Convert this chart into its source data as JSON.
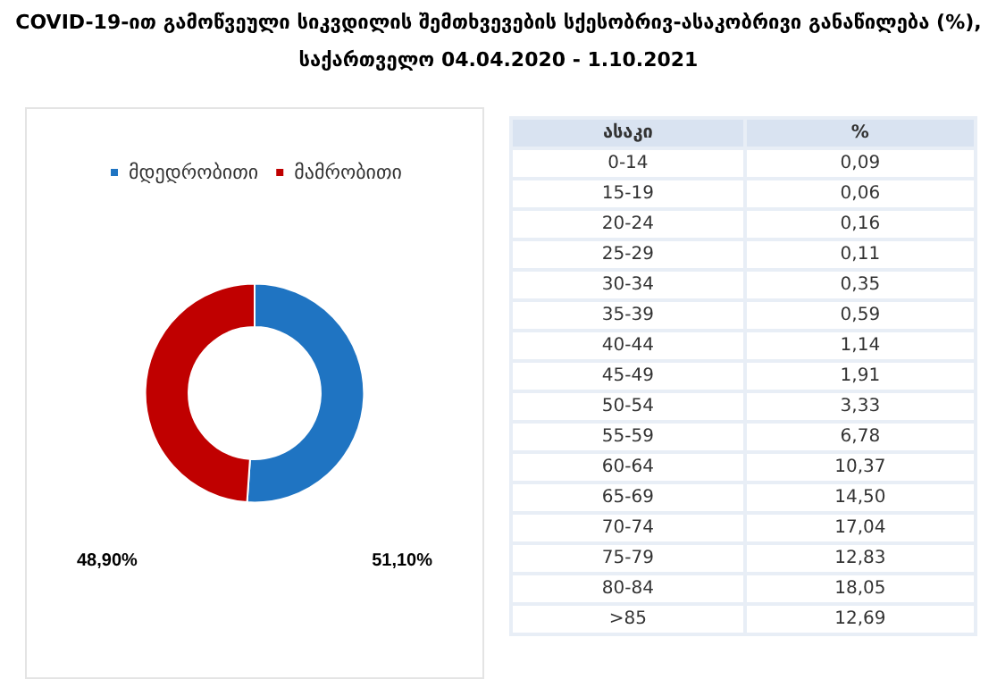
{
  "chart_data": [
    {
      "type": "donut",
      "title": "COVID-19-ით გამოწვეული სიკვდილის შემთხვევების სქესობრივ-ასაკობრივი განაწილება (%), საქართველო 04.04.2020 - 1.10.2021",
      "categories": [
        "მდედრობითი",
        "მამრობითი"
      ],
      "values": [
        51.1,
        48.9
      ],
      "colors": [
        "#1f74c2",
        "#c00000"
      ],
      "value_labels": [
        "51,10%",
        "48,90%"
      ],
      "legend": "top"
    },
    {
      "type": "other",
      "xlabel": "ასაკი",
      "ylabel": "%",
      "categories": [
        "0-14",
        "15-19",
        "20-24",
        "25-29",
        "30-34",
        "35-39",
        "40-44",
        "45-49",
        "50-54",
        "55-59",
        "60-64",
        "65-69",
        "70-74",
        "75-79",
        "80-84",
        ">85"
      ],
      "values": [
        0.09,
        0.06,
        0.16,
        0.11,
        0.35,
        0.59,
        1.14,
        1.91,
        3.33,
        6.78,
        10.37,
        14.5,
        17.04,
        12.83,
        18.05,
        12.69
      ],
      "value_labels": [
        "0,09",
        "0,06",
        "0,16",
        "0,11",
        "0,35",
        "0,59",
        "1,14",
        "1,91",
        "3,33",
        "6,78",
        "10,37",
        "14,50",
        "17,04",
        "12,83",
        "18,05",
        "12,69"
      ]
    }
  ]
}
